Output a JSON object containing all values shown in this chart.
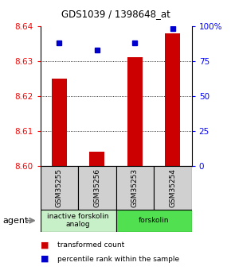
{
  "title": "GDS1039 / 1398648_at",
  "samples": [
    "GSM35255",
    "GSM35256",
    "GSM35253",
    "GSM35254"
  ],
  "red_values": [
    8.625,
    8.604,
    8.631,
    8.638
  ],
  "blue_values_pct": [
    88,
    83,
    88,
    98
  ],
  "ylim": [
    8.6,
    8.64
  ],
  "y2lim": [
    0,
    100
  ],
  "yticks": [
    8.6,
    8.61,
    8.62,
    8.63,
    8.64
  ],
  "y2ticks": [
    0,
    25,
    50,
    75,
    100
  ],
  "y2ticklabels": [
    "0",
    "25",
    "50",
    "75",
    "100%"
  ],
  "groups": [
    {
      "label": "inactive forskolin\nanalog",
      "samples": [
        0,
        1
      ],
      "color": "#c8f0c8"
    },
    {
      "label": "forskolin",
      "samples": [
        2,
        3
      ],
      "color": "#50e050"
    }
  ],
  "bar_color": "#cc0000",
  "dot_color": "#0000cc",
  "background_color": "#ffffff",
  "sample_bg": "#d0d0d0",
  "legend_red": "transformed count",
  "legend_blue": "percentile rank within the sample",
  "agent_label": "agent",
  "bar_width": 0.4
}
